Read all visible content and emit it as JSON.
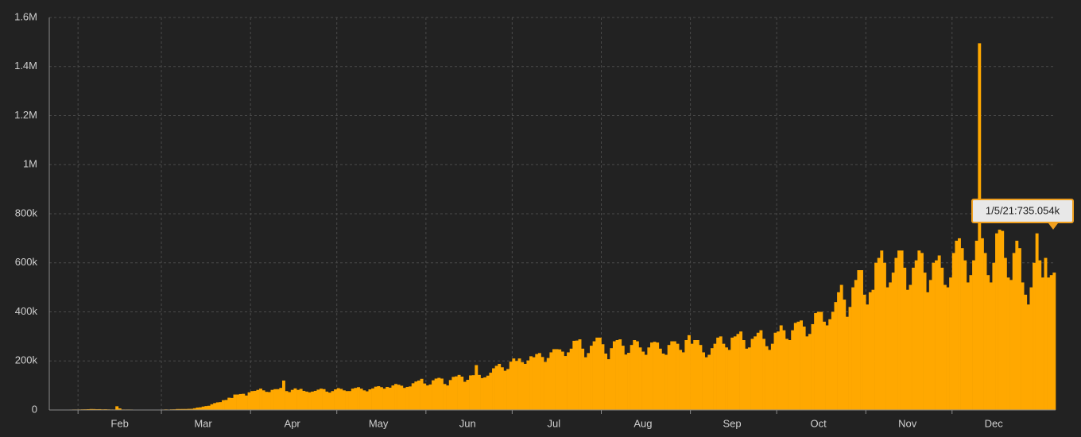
{
  "chart_data": {
    "type": "bar",
    "color": "#ffa800",
    "ylim": [
      0,
      1600000
    ],
    "yticks": [
      0,
      {
        "value": 200000,
        "label": "200k"
      },
      {
        "value": 400000,
        "label": "400k"
      },
      {
        "value": 600000,
        "label": "600k"
      },
      {
        "value": 800000,
        "label": "800k"
      },
      {
        "value": 1000000,
        "label": "1M"
      },
      {
        "value": 1200000,
        "label": "1.2M"
      },
      {
        "value": 1400000,
        "label": "1.4M"
      },
      {
        "value": 1600000,
        "label": "1.6M"
      }
    ],
    "grid": true,
    "tooltip": "1/5/21:735.054k",
    "categories": [
      null,
      null,
      null,
      null,
      null,
      null,
      null,
      null,
      null,
      null,
      null,
      null,
      null,
      null,
      null,
      null,
      null,
      null,
      null,
      null,
      null,
      null,
      null,
      null,
      "Feb",
      null,
      null,
      null,
      null,
      null,
      null,
      null,
      null,
      null,
      null,
      null,
      null,
      null,
      null,
      null,
      null,
      null,
      null,
      null,
      null,
      null,
      null,
      null,
      null,
      null,
      null,
      null,
      null,
      "Mar",
      null,
      null,
      null,
      null,
      null,
      null,
      null,
      null,
      null,
      null,
      null,
      null,
      null,
      null,
      null,
      null,
      null,
      null,
      null,
      null,
      null,
      null,
      null,
      null,
      null,
      null,
      null,
      null,
      null,
      null,
      "Apr",
      null,
      null,
      null,
      null,
      null,
      null,
      null,
      null,
      null,
      null,
      null,
      null,
      null,
      null,
      null,
      null,
      null,
      null,
      null,
      null,
      null,
      null,
      null,
      null,
      null,
      null,
      null,
      null,
      null,
      "May",
      null,
      null,
      null,
      null,
      null,
      null,
      null,
      null,
      null,
      null,
      null,
      null,
      null,
      null,
      null,
      null,
      null,
      null,
      null,
      null,
      null,
      null,
      null,
      null,
      null,
      null,
      null,
      null,
      null,
      null,
      "Jun",
      null,
      null,
      null,
      null,
      null,
      null,
      null,
      null,
      null,
      null,
      null,
      null,
      null,
      null,
      null,
      null,
      null,
      null,
      null,
      null,
      null,
      null,
      null,
      null,
      null,
      null,
      null,
      null,
      null,
      "Jul",
      null,
      null,
      null,
      null,
      null,
      null,
      null,
      null,
      null,
      null,
      null,
      null,
      null,
      null,
      null,
      null,
      null,
      null,
      null,
      null,
      null,
      null,
      null,
      null,
      null,
      null,
      null,
      null,
      null,
      null,
      "Aug",
      null,
      null,
      null,
      null,
      null,
      null,
      null,
      null,
      null,
      null,
      null,
      null,
      null,
      null,
      null,
      null,
      null,
      null,
      null,
      null,
      null,
      null,
      null,
      null,
      null,
      null,
      null,
      null,
      null,
      null,
      "Sep",
      null,
      null,
      null,
      null,
      null,
      null,
      null,
      null,
      null,
      null,
      null,
      null,
      null,
      null,
      null,
      null,
      null,
      null,
      null,
      null,
      null,
      null,
      null,
      null,
      null,
      null,
      null,
      null,
      null,
      "Oct",
      null,
      null,
      null,
      null,
      null,
      null,
      null,
      null,
      null,
      null,
      null,
      null,
      null,
      null,
      null,
      null,
      null,
      null,
      null,
      null,
      null,
      null,
      null,
      null,
      null,
      null,
      null,
      null,
      null,
      null,
      "Nov",
      null,
      null,
      null,
      null,
      null,
      null,
      null,
      null,
      null,
      null,
      null,
      null,
      null,
      null,
      null,
      null,
      null,
      null,
      null,
      null,
      null,
      null,
      null,
      null,
      null,
      null,
      null,
      null,
      null,
      "Dec",
      null,
      null,
      null,
      null,
      null,
      null,
      null,
      null,
      null,
      null,
      null,
      null,
      null,
      null,
      null,
      null,
      null,
      null,
      null,
      null,
      null
    ],
    "values": [
      0,
      100,
      300,
      500,
      700,
      800,
      1500,
      1700,
      2000,
      2000,
      2100,
      2600,
      2800,
      3200,
      3900,
      3700,
      3200,
      3400,
      2700,
      3000,
      2500,
      2100,
      2000,
      15100,
      6500,
      2100,
      2000,
      2100,
      1900,
      600,
      600,
      1000,
      600,
      500,
      600,
      800,
      1000,
      1200,
      1400,
      1800,
      2400,
      1900,
      2600,
      2800,
      3900,
      3900,
      4000,
      4000,
      4600,
      4800,
      7000,
      10000,
      10900,
      13900,
      15800,
      17100,
      23500,
      28000,
      31000,
      32000,
      40000,
      41000,
      50000,
      49000,
      63000,
      63000,
      65000,
      66000,
      59000,
      72000,
      77000,
      78000,
      82000,
      87000,
      80000,
      74000,
      73000,
      82000,
      85000,
      85000,
      90000,
      120000,
      77000,
      73000,
      82000,
      88000,
      82000,
      86000,
      78000,
      75000,
      72000,
      75000,
      78000,
      83000,
      87000,
      85000,
      75000,
      71000,
      77000,
      84000,
      89000,
      86000,
      80000,
      77000,
      77000,
      87000,
      90000,
      93000,
      87000,
      80000,
      76000,
      84000,
      88000,
      95000,
      97000,
      93000,
      87000,
      94000,
      91000,
      100000,
      106000,
      103000,
      99000,
      90000,
      94000,
      96000,
      109000,
      116000,
      120000,
      127000,
      108000,
      100000,
      104000,
      121000,
      128000,
      131000,
      128000,
      106000,
      100000,
      122000,
      135000,
      137000,
      143000,
      136000,
      115000,
      123000,
      141000,
      142000,
      183000,
      143000,
      130000,
      133000,
      140000,
      152000,
      170000,
      180000,
      188000,
      174000,
      160000,
      167000,
      197000,
      210000,
      200000,
      210000,
      195000,
      188000,
      202000,
      219000,
      215000,
      228000,
      232000,
      216000,
      196000,
      212000,
      235000,
      248000,
      248000,
      247000,
      238000,
      220000,
      235000,
      250000,
      282000,
      283000,
      288000,
      250000,
      215000,
      232000,
      262000,
      280000,
      295000,
      295000,
      268000,
      230000,
      207000,
      252000,
      280000,
      285000,
      288000,
      262000,
      226000,
      233000,
      265000,
      285000,
      280000,
      255000,
      238000,
      225000,
      255000,
      275000,
      278000,
      275000,
      250000,
      230000,
      225000,
      265000,
      280000,
      280000,
      270000,
      245000,
      235000,
      285000,
      305000,
      270000,
      285000,
      285000,
      265000,
      235000,
      215000,
      225000,
      252000,
      270000,
      295000,
      300000,
      270000,
      255000,
      245000,
      295000,
      300000,
      310000,
      320000,
      285000,
      250000,
      255000,
      290000,
      300000,
      315000,
      325000,
      290000,
      260000,
      245000,
      270000,
      315000,
      320000,
      345000,
      325000,
      290000,
      285000,
      325000,
      355000,
      360000,
      365000,
      340000,
      300000,
      310000,
      350000,
      395000,
      400000,
      400000,
      360000,
      345000,
      370000,
      400000,
      440000,
      480000,
      510000,
      450000,
      380000,
      420000,
      500000,
      530000,
      570000,
      570000,
      470000,
      430000,
      480000,
      490000,
      600000,
      620000,
      650000,
      600000,
      500000,
      520000,
      560000,
      620000,
      650000,
      650000,
      580000,
      490000,
      510000,
      580000,
      610000,
      650000,
      640000,
      560000,
      480000,
      530000,
      600000,
      610000,
      630000,
      580000,
      510000,
      500000,
      540000,
      640000,
      690000,
      700000,
      660000,
      610000,
      520000,
      550000,
      610000,
      690000,
      1495000,
      700000,
      640000,
      550000,
      520000,
      600000,
      720000,
      735000,
      730000,
      620000,
      540000,
      530000,
      640000,
      690000,
      660000,
      520000,
      470000,
      430000,
      500000,
      600000,
      720000,
      610000,
      540000,
      620000,
      540000,
      550000,
      560000
    ]
  }
}
